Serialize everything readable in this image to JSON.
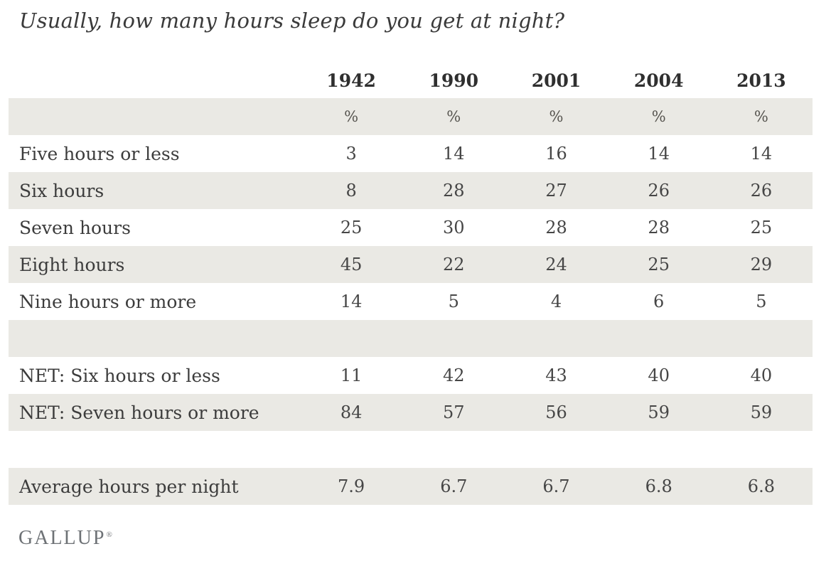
{
  "header": {
    "title": "Usually, how many hours sleep do you get at night?"
  },
  "table": {
    "columns": [
      "1942",
      "1990",
      "2001",
      "2004",
      "2013"
    ],
    "unit_row": [
      "%",
      "%",
      "%",
      "%",
      "%"
    ],
    "rows": [
      {
        "label": "Five hours or less",
        "values": [
          "3",
          "14",
          "16",
          "14",
          "14"
        ]
      },
      {
        "label": "Six hours",
        "values": [
          "8",
          "28",
          "27",
          "26",
          "26"
        ]
      },
      {
        "label": "Seven hours",
        "values": [
          "25",
          "30",
          "28",
          "28",
          "25"
        ]
      },
      {
        "label": "Eight hours",
        "values": [
          "45",
          "22",
          "24",
          "25",
          "29"
        ]
      },
      {
        "label": "Nine hours or more",
        "values": [
          "14",
          "5",
          "4",
          "6",
          "5"
        ]
      },
      {
        "label": "",
        "values": [
          "",
          "",
          "",
          "",
          ""
        ]
      },
      {
        "label": "NET: Six hours or less",
        "values": [
          "11",
          "42",
          "43",
          "40",
          "40"
        ]
      },
      {
        "label": "NET: Seven hours or more",
        "values": [
          "84",
          "57",
          "56",
          "59",
          "59"
        ]
      },
      {
        "label": "",
        "values": [
          "",
          "",
          "",
          "",
          ""
        ]
      },
      {
        "label": "Average hours per night",
        "values": [
          "7.9",
          "6.7",
          "6.7",
          "6.8",
          "6.8"
        ]
      }
    ]
  },
  "footer": {
    "logo": "GALLUP",
    "registered_mark": "®"
  },
  "colors": {
    "row_shade": "#EAE9E4",
    "text": "#3C3C3C",
    "year_header": "#2F2F2F",
    "logo": "#6E7276"
  },
  "chart_data": {
    "type": "table",
    "title": "Usually, how many hours sleep do you get at night?",
    "columns": [
      "1942",
      "1990",
      "2001",
      "2004",
      "2013"
    ],
    "unit": "%",
    "rows": [
      {
        "label": "Five hours or less",
        "values": [
          3,
          14,
          16,
          14,
          14
        ]
      },
      {
        "label": "Six hours",
        "values": [
          8,
          28,
          27,
          26,
          26
        ]
      },
      {
        "label": "Seven hours",
        "values": [
          25,
          30,
          28,
          28,
          25
        ]
      },
      {
        "label": "Eight hours",
        "values": [
          45,
          22,
          24,
          25,
          29
        ]
      },
      {
        "label": "Nine hours or more",
        "values": [
          14,
          5,
          4,
          6,
          5
        ]
      },
      {
        "label": "NET: Six hours or less",
        "values": [
          11,
          42,
          43,
          40,
          40
        ]
      },
      {
        "label": "NET: Seven hours or more",
        "values": [
          84,
          57,
          56,
          59,
          59
        ]
      },
      {
        "label": "Average hours per night",
        "values": [
          7.9,
          6.7,
          6.7,
          6.8,
          6.8
        ]
      }
    ],
    "source": "GALLUP",
    "layout_hints": {
      "zebra_striping": true,
      "spacer_rows_after": [
        "Nine hours or more",
        "NET: Seven hours or more"
      ]
    }
  }
}
